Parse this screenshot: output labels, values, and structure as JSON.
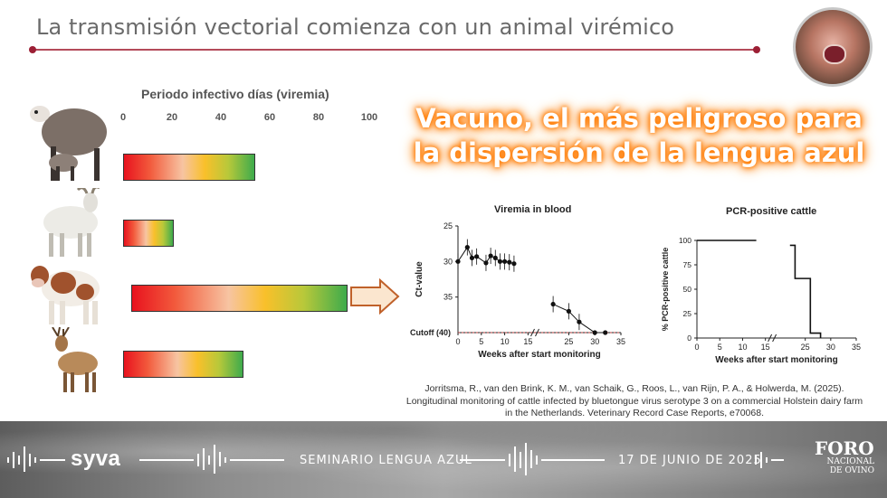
{
  "slide": {
    "title": "La transmisión vectorial comienza con un animal virémico",
    "headline_line1": "Vacuno, el más peligroso para",
    "headline_line2": "la dispersión de la lengua azul"
  },
  "bar_chart": {
    "title": "Periodo infectivo días  (viremia)",
    "ticks": [
      "0",
      "20",
      "40",
      "60",
      "80",
      "100"
    ],
    "animals": [
      "sheep-icon",
      "goat-icon",
      "cow-icon",
      "deer-icon"
    ],
    "colors": {
      "low": "#e8121e",
      "mid": "#f9c02a",
      "high": "#3eab4c"
    }
  },
  "chart_data": [
    {
      "type": "line",
      "title": "Viremia in blood",
      "xlabel": "Weeks after start monitoring",
      "ylabel": "Ct-value",
      "x_ticks": [
        "0",
        "5",
        "10",
        "15",
        "25",
        "30",
        "35"
      ],
      "y_ticks": [
        "25",
        "30",
        "35"
      ],
      "cutoff_label": "Cutoff (40)",
      "xlim": [
        0,
        35
      ],
      "ylim": [
        25,
        40
      ],
      "y_inverted": true,
      "series": [
        {
          "values": [
            [
              0,
              30
            ],
            [
              2,
              28
            ],
            [
              3,
              29.5
            ],
            [
              4,
              29.3
            ],
            [
              6,
              30.2
            ],
            [
              7,
              29.2
            ],
            [
              8,
              29.5
            ],
            [
              9,
              30
            ],
            [
              10,
              30
            ],
            [
              11,
              30.1
            ],
            [
              12,
              30.3
            ],
            [
              22,
              36
            ],
            [
              25,
              37
            ],
            [
              27,
              38.5
            ],
            [
              30,
              40
            ],
            [
              32,
              40
            ]
          ]
        }
      ]
    },
    {
      "type": "line",
      "title": "PCR-positive cattle",
      "xlabel": "Weeks after start monitoring",
      "ylabel": "% PCR-positive cattle",
      "x_ticks": [
        "0",
        "5",
        "10",
        "15",
        "25",
        "30",
        "35"
      ],
      "y_ticks": [
        "0",
        "25",
        "50",
        "75",
        "100"
      ],
      "xlim": [
        0,
        35
      ],
      "ylim": [
        0,
        100
      ],
      "series": [
        {
          "values": [
            [
              0,
              100
            ],
            [
              13,
              100
            ],
            [
              22,
              95
            ],
            [
              23,
              61
            ],
            [
              25,
              61
            ],
            [
              26,
              5
            ],
            [
              28,
              5
            ],
            [
              28,
              0
            ]
          ]
        }
      ]
    }
  ],
  "reference": "Jorritsma, R., van den Brink, K. M., van Schaik, G., Roos, L., van Rijn, P. A., & Holwerda, M. (2025). Longitudinal monitoring of cattle infected by bluetongue virus serotype 3 on a commercial Holstein dairy farm in the Netherlands. Veterinary Record Case Reports, e70068.",
  "footer": {
    "brand": "syva",
    "seminar": "SEMINARIO LENGUA AZUL",
    "date": "17 DE JUNIO DE 2025",
    "foro_big": "FORO",
    "foro_small1": "NACIONAL",
    "foro_small2": "DE OVINO"
  }
}
